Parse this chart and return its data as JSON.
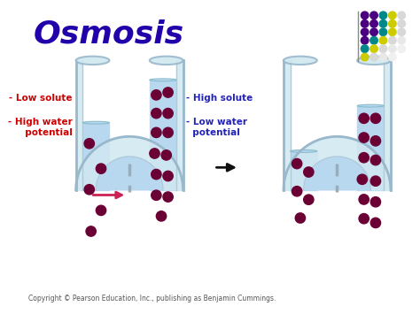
{
  "title": "Osmosis",
  "title_color": "#2200aa",
  "title_fontsize": 26,
  "title_weight": "bold",
  "title_italic": true,
  "bg_color": "#ffffff",
  "water_color": "#b8d8f0",
  "tube_outer_color": "#d0e8f0",
  "tube_edge_color": "#9ab8cc",
  "membrane_color": "#9aacb8",
  "dot_color": "#6b0035",
  "left_label1": "- Low solute",
  "left_label2": "- High water\n  potential",
  "right_label1": "- High solute",
  "right_label2": "- Low water\n  potential",
  "label_color_red": "#cc0000",
  "label_color_blue": "#2222bb",
  "arrow_color": "#cc2255",
  "arrow2_color": "#111111",
  "copyright": "Copyright © Pearson Education, Inc., publishing as Benjamin Cummings.",
  "copyright_fontsize": 5.5,
  "dot_grid": [
    [
      "#4a0080",
      "#4a0080",
      "#008888",
      "#cccc00",
      "#d8d8d8"
    ],
    [
      "#4a0080",
      "#4a0080",
      "#008888",
      "#cccc00",
      "#d8d8d8"
    ],
    [
      "#4a0080",
      "#4a0080",
      "#008888",
      "#cccc00",
      "#d8d8d8"
    ],
    [
      "#4a0080",
      "#008888",
      "#cccc00",
      "#d8d8d8",
      "#e8e8e8"
    ],
    [
      "#008888",
      "#cccc00",
      "#d8d8d8",
      "#e8e8e8",
      "#f0f0f0"
    ],
    [
      "#cccc00",
      "#d8d8d8",
      "#e8e8e8",
      "#f0f0f0",
      "#ffffff"
    ]
  ]
}
